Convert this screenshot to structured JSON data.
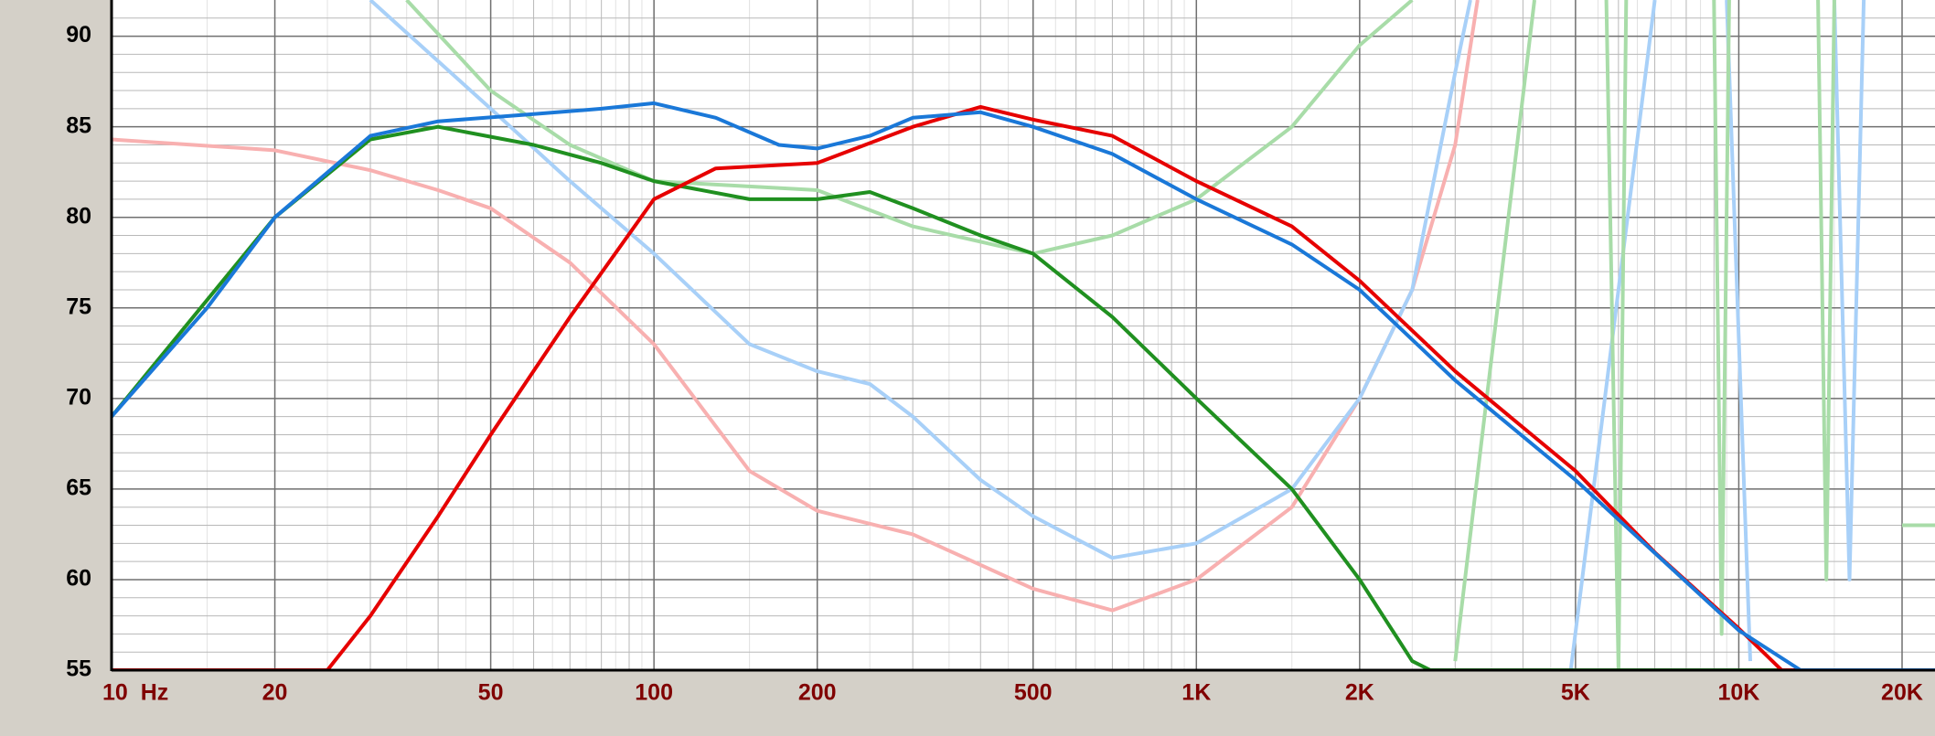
{
  "chart_data": {
    "type": "line",
    "xscale": "log",
    "grid": true,
    "minor_grid": true,
    "xlim": [
      10,
      23000
    ],
    "ylim": [
      55,
      92
    ],
    "xticks": [
      {
        "value": 10,
        "label": "10  Hz"
      },
      20,
      50,
      100,
      200,
      500,
      {
        "value": 1000,
        "label": "1K"
      },
      {
        "value": 2000,
        "label": "2K"
      },
      {
        "value": 5000,
        "label": "5K"
      },
      {
        "value": 10000,
        "label": "10K"
      },
      {
        "value": 20000,
        "label": "20K"
      }
    ],
    "yticks": [
      55,
      60,
      65,
      70,
      75,
      80,
      85,
      90
    ],
    "series": [
      {
        "color": "#f8b0b0",
        "x": [
          10,
          20,
          30,
          40,
          50,
          70,
          100,
          150,
          200,
          300,
          500,
          700,
          1000,
          1500,
          2000,
          2500,
          3000,
          3300
        ],
        "values": [
          84.3,
          83.7,
          82.6,
          81.5,
          80.5,
          77.5,
          73,
          66,
          63.8,
          62.5,
          59.5,
          58.3,
          60,
          64,
          70,
          76,
          84,
          92
        ]
      },
      {
        "color": "#a8d0f8",
        "x": [
          30,
          50,
          70,
          100,
          150,
          200,
          250,
          300,
          400,
          500,
          700,
          1000,
          1500,
          2000,
          2500,
          3000,
          3200,
          4000,
          4900,
          7000,
          8000,
          9500,
          10500,
          11000,
          15000,
          16000,
          17000
        ],
        "values": [
          92,
          86,
          82,
          78,
          73,
          71.5,
          70.8,
          69,
          65.5,
          63.5,
          61.2,
          62,
          65,
          70,
          76,
          88,
          92,
          null,
          55,
          92,
          null,
          92,
          55.5,
          null,
          92,
          60,
          92
        ]
      },
      {
        "color": "#a8dca8",
        "x": [
          35,
          50,
          70,
          100,
          200,
          300,
          500,
          700,
          1000,
          1500,
          2000,
          2500,
          2800,
          3000,
          4200,
          5000,
          5700,
          6000,
          6200,
          7000,
          9000,
          9300,
          9600,
          12000,
          14000,
          14500,
          15000,
          19000,
          20000,
          23000
        ],
        "values": [
          92,
          87,
          84,
          82,
          81.5,
          79.5,
          78,
          79,
          81,
          85,
          89.5,
          92,
          null,
          55.5,
          92,
          null,
          92,
          55,
          92,
          null,
          92,
          57,
          92,
          null,
          92,
          60,
          92,
          null,
          63,
          63
        ]
      },
      {
        "color": "#209020",
        "x": [
          10,
          20,
          30,
          40,
          60,
          80,
          100,
          150,
          200,
          250,
          300,
          400,
          500,
          700,
          1000,
          1500,
          2000,
          2500,
          2700,
          23000
        ],
        "values": [
          69,
          80,
          84.3,
          85,
          84,
          83,
          82,
          81,
          81,
          81.4,
          80.5,
          79,
          78,
          74.5,
          70,
          65,
          60,
          55.5,
          55,
          55
        ]
      },
      {
        "color": "#e60000",
        "x": [
          10,
          25,
          30,
          40,
          50,
          70,
          100,
          130,
          200,
          300,
          400,
          500,
          700,
          1000,
          1500,
          2000,
          3000,
          5000,
          7000,
          10000,
          12000,
          23000
        ],
        "values": [
          55,
          55,
          58,
          63.5,
          68,
          74.5,
          81,
          82.7,
          83,
          85,
          86.1,
          85.4,
          84.5,
          82,
          79.5,
          76.5,
          71.5,
          66,
          61.5,
          57.3,
          55,
          55
        ]
      },
      {
        "color": "#1a78d8",
        "x": [
          10,
          15,
          20,
          30,
          40,
          60,
          80,
          100,
          130,
          170,
          200,
          250,
          300,
          400,
          500,
          700,
          1000,
          1500,
          2000,
          3000,
          5000,
          10000,
          13000,
          23000
        ],
        "values": [
          69,
          75,
          80,
          84.5,
          85.3,
          85.7,
          86,
          86.3,
          85.5,
          84,
          83.8,
          84.5,
          85.5,
          85.8,
          85,
          83.5,
          81,
          78.5,
          76,
          71,
          65.5,
          57.2,
          55,
          55
        ]
      }
    ]
  }
}
